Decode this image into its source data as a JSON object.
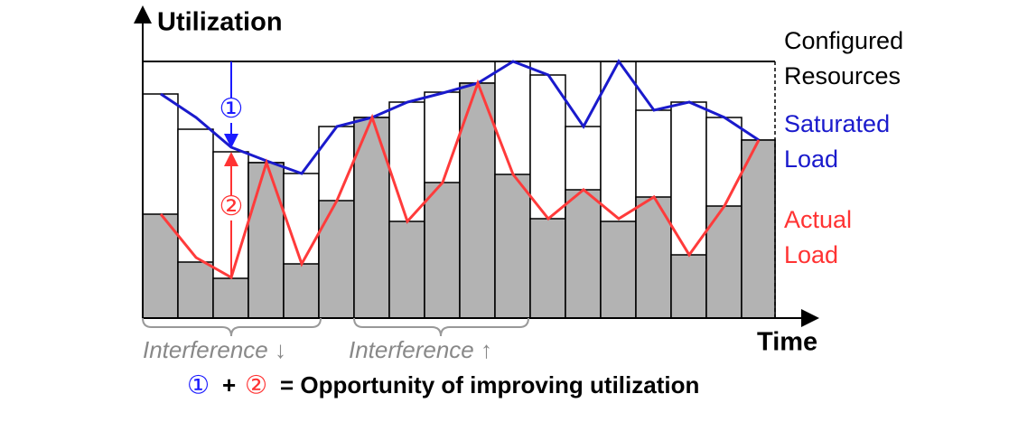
{
  "axes": {
    "y_label": "Utilization",
    "x_label": "Time"
  },
  "legend": {
    "configured": [
      "Configured",
      "Resources"
    ],
    "saturated": [
      "Saturated",
      "Load"
    ],
    "actual": [
      "Actual",
      "Load"
    ]
  },
  "markers": {
    "one": "①",
    "two": "②"
  },
  "braces": {
    "left": "Interference ↓",
    "right": "Interference ↑"
  },
  "footnote": {
    "one": "①",
    "plus": "+",
    "two": "②",
    "text": "= Opportunity of improving utilization"
  }
}
